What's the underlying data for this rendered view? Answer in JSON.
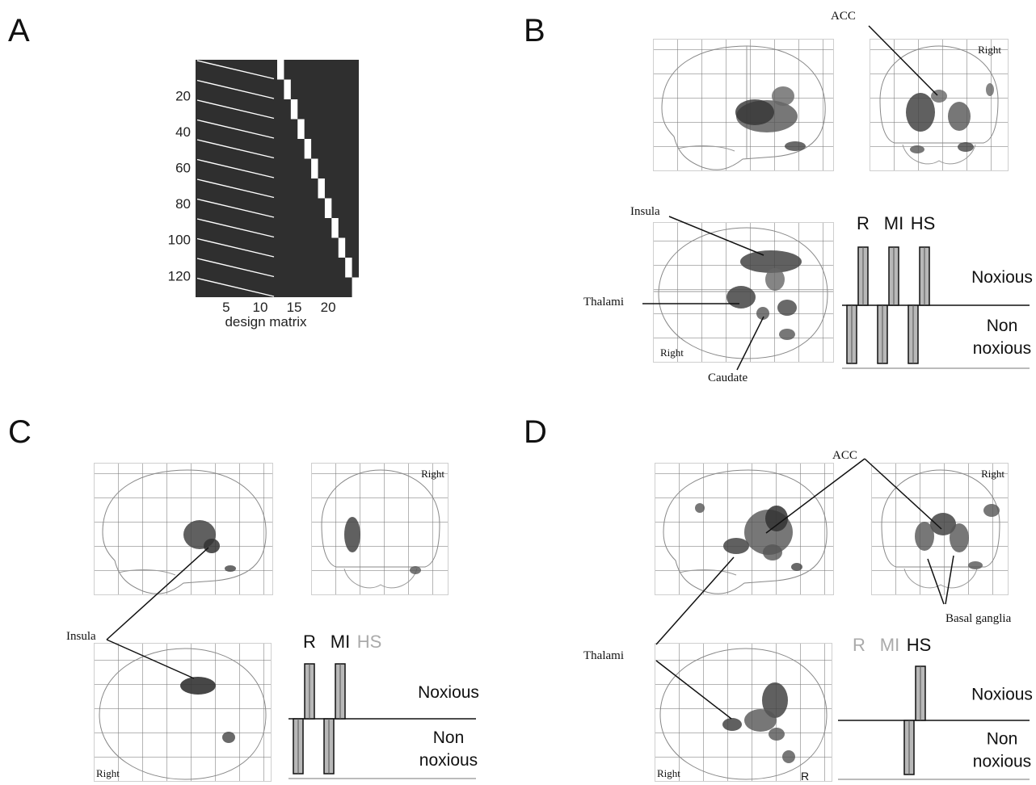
{
  "panels": {
    "A": {
      "letter": "A",
      "matrix": {
        "y_ticks": [
          "20",
          "40",
          "60",
          "80",
          "100",
          "120"
        ],
        "x_ticks": [
          "5",
          "10",
          "15",
          "20"
        ],
        "xlabel": "design matrix",
        "n_rows": 132,
        "n_cols": 24,
        "n_sessions": 12
      }
    },
    "B": {
      "letter": "B",
      "right_label": "Right",
      "labels": {
        "acc": "ACC",
        "insula": "Insula",
        "thalami": "Thalami",
        "caudate": "Caudate"
      },
      "contrast": {
        "headers": [
          "R",
          "MI",
          "HS"
        ],
        "header_colors": [
          "#111111",
          "#111111",
          "#111111"
        ],
        "noxious": "Noxious",
        "non_noxious_1": "Non",
        "non_noxious_2": "noxious",
        "weights": [
          1,
          -1,
          1,
          -1,
          1,
          -1
        ]
      }
    },
    "C": {
      "letter": "C",
      "right_label": "Right",
      "labels": {
        "insula": "Insula"
      },
      "contrast": {
        "headers": [
          "R",
          "MI",
          "HS"
        ],
        "header_colors": [
          "#111111",
          "#111111",
          "#aaaaaa"
        ],
        "noxious": "Noxious",
        "non_noxious_1": "Non",
        "non_noxious_2": "noxious",
        "weights": [
          1,
          -1,
          1,
          -1,
          0,
          0
        ]
      }
    },
    "D": {
      "letter": "D",
      "right_label": "Right",
      "r_label": "R",
      "labels": {
        "acc": "ACC",
        "thalami": "Thalami",
        "basal_ganglia": "Basal ganglia"
      },
      "contrast": {
        "headers": [
          "R",
          "MI",
          "HS"
        ],
        "header_colors": [
          "#aaaaaa",
          "#aaaaaa",
          "#111111"
        ],
        "noxious": "Noxious",
        "non_noxious_1": "Non",
        "non_noxious_2": "noxious",
        "weights": [
          0,
          0,
          0,
          0,
          1,
          -1
        ]
      }
    }
  }
}
